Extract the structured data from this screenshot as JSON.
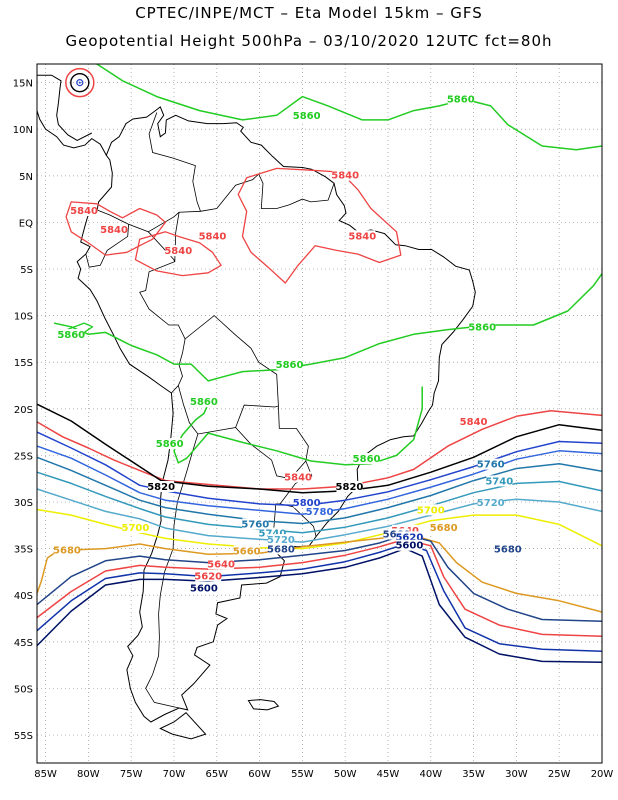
{
  "header": {
    "line1": "CPTEC/INPE/MCT –  Eta Model 15km – GFS",
    "line2": "Geopotential Height 500hPa – 03/10/2020 12UTC fct=80h"
  },
  "axes": {
    "lon_labels": [
      "85W",
      "80W",
      "75W",
      "70W",
      "65W",
      "60W",
      "55W",
      "50W",
      "45W",
      "40W",
      "35W",
      "30W",
      "25W",
      "20W"
    ],
    "lat_labels": [
      "15N",
      "10N",
      "5N",
      "EQ",
      "5S",
      "10S",
      "15S",
      "20S",
      "25S",
      "30S",
      "35S",
      "40S",
      "45S",
      "50S",
      "55S"
    ],
    "lon_range": [
      -86,
      -20
    ],
    "lat_range": [
      17,
      -58
    ],
    "grid": "dotted"
  },
  "colors": {
    "c5860": "#22cc22",
    "c5840": "#ee4444",
    "c5820": "#000000",
    "c5800": "#2244cc",
    "c5780": "#3366dd",
    "c5760": "#2277aa",
    "c5740": "#3399bb",
    "c5720": "#55aacc",
    "c5700": "#eeee00",
    "c5680": "#dd9922",
    "c5660": "#224488",
    "c5640": "#ee4444",
    "c5620": "#1133aa",
    "c5600": "#001166",
    "land": "#000000",
    "marker": "#2244cc"
  },
  "contour_labels": [
    {
      "text": "5860",
      "lon": -54.5,
      "lat": 11.2,
      "color_key": "c5860"
    },
    {
      "text": "5860",
      "lon": -36.5,
      "lat": 13.0,
      "color_key": "c5860"
    },
    {
      "text": "5840",
      "lon": -80.5,
      "lat": 1.0,
      "color_key": "c5840"
    },
    {
      "text": "5840",
      "lon": -77.0,
      "lat": -1.0,
      "color_key": "c5840"
    },
    {
      "text": "5840",
      "lon": -69.5,
      "lat": -3.3,
      "color_key": "c5840"
    },
    {
      "text": "5840",
      "lon": -65.5,
      "lat": -1.7,
      "color_key": "c5840"
    },
    {
      "text": "5840",
      "lon": -50.0,
      "lat": 4.8,
      "color_key": "c5840"
    },
    {
      "text": "5840",
      "lon": -48.0,
      "lat": -1.7,
      "color_key": "c5840"
    },
    {
      "text": "5860",
      "lon": -82.0,
      "lat": -12.3,
      "color_key": "c5860"
    },
    {
      "text": "5860",
      "lon": -34.0,
      "lat": -11.5,
      "color_key": "c5860"
    },
    {
      "text": "5860",
      "lon": -56.5,
      "lat": -15.5,
      "color_key": "c5860"
    },
    {
      "text": "5860",
      "lon": -66.5,
      "lat": -19.5,
      "color_key": "c5860"
    },
    {
      "text": "5860",
      "lon": -70.5,
      "lat": -24.0,
      "color_key": "c5860"
    },
    {
      "text": "5860",
      "lon": -47.5,
      "lat": -25.6,
      "color_key": "c5860"
    },
    {
      "text": "5840",
      "lon": -35.0,
      "lat": -21.6,
      "color_key": "c5840"
    },
    {
      "text": "5820",
      "lon": -71.5,
      "lat": -28.6,
      "color_key": "c5820"
    },
    {
      "text": "5840",
      "lon": -55.5,
      "lat": -27.6,
      "color_key": "c5840"
    },
    {
      "text": "5820",
      "lon": -49.5,
      "lat": -28.6,
      "color_key": "c5820"
    },
    {
      "text": "5760",
      "lon": -33.0,
      "lat": -26.2,
      "color_key": "c5760"
    },
    {
      "text": "5740",
      "lon": -32.0,
      "lat": -28.0,
      "color_key": "c5740"
    },
    {
      "text": "5720",
      "lon": -33.0,
      "lat": -30.3,
      "color_key": "c5720"
    },
    {
      "text": "5800",
      "lon": -54.5,
      "lat": -30.3,
      "color_key": "c5800"
    },
    {
      "text": "5780",
      "lon": -53.0,
      "lat": -31.3,
      "color_key": "c5780"
    },
    {
      "text": "5760",
      "lon": -60.5,
      "lat": -32.6,
      "color_key": "c5760"
    },
    {
      "text": "5740",
      "lon": -58.5,
      "lat": -33.6,
      "color_key": "c5740"
    },
    {
      "text": "5720",
      "lon": -57.5,
      "lat": -34.3,
      "color_key": "c5720"
    },
    {
      "text": "5700",
      "lon": -40.0,
      "lat": -31.1,
      "color_key": "c5700"
    },
    {
      "text": "5700",
      "lon": -74.5,
      "lat": -33.0,
      "color_key": "c5700"
    },
    {
      "text": "5680",
      "lon": -57.5,
      "lat": -35.3,
      "color_key": "c5660"
    },
    {
      "text": "5680",
      "lon": -38.5,
      "lat": -33.0,
      "color_key": "c5680"
    },
    {
      "text": "5680",
      "lon": -31.0,
      "lat": -35.3,
      "color_key": "c5660"
    },
    {
      "text": "5680",
      "lon": -82.5,
      "lat": -35.4,
      "color_key": "c5680"
    },
    {
      "text": "5660",
      "lon": -61.5,
      "lat": -35.5,
      "color_key": "c5680"
    },
    {
      "text": "5640",
      "lon": -43.0,
      "lat": -33.3,
      "color_key": "c5640"
    },
    {
      "text": "5660",
      "lon": -44.0,
      "lat": -33.7,
      "color_key": "c5660"
    },
    {
      "text": "5620",
      "lon": -42.5,
      "lat": -34.0,
      "color_key": "c5620"
    },
    {
      "text": "5600",
      "lon": -42.5,
      "lat": -34.9,
      "color_key": "c5600"
    },
    {
      "text": "5640",
      "lon": -64.5,
      "lat": -36.9,
      "color_key": "c5640"
    },
    {
      "text": "5620",
      "lon": -66.0,
      "lat": -38.2,
      "color_key": "c5640"
    },
    {
      "text": "5600",
      "lon": -66.5,
      "lat": -39.5,
      "color_key": "c5600"
    }
  ]
}
